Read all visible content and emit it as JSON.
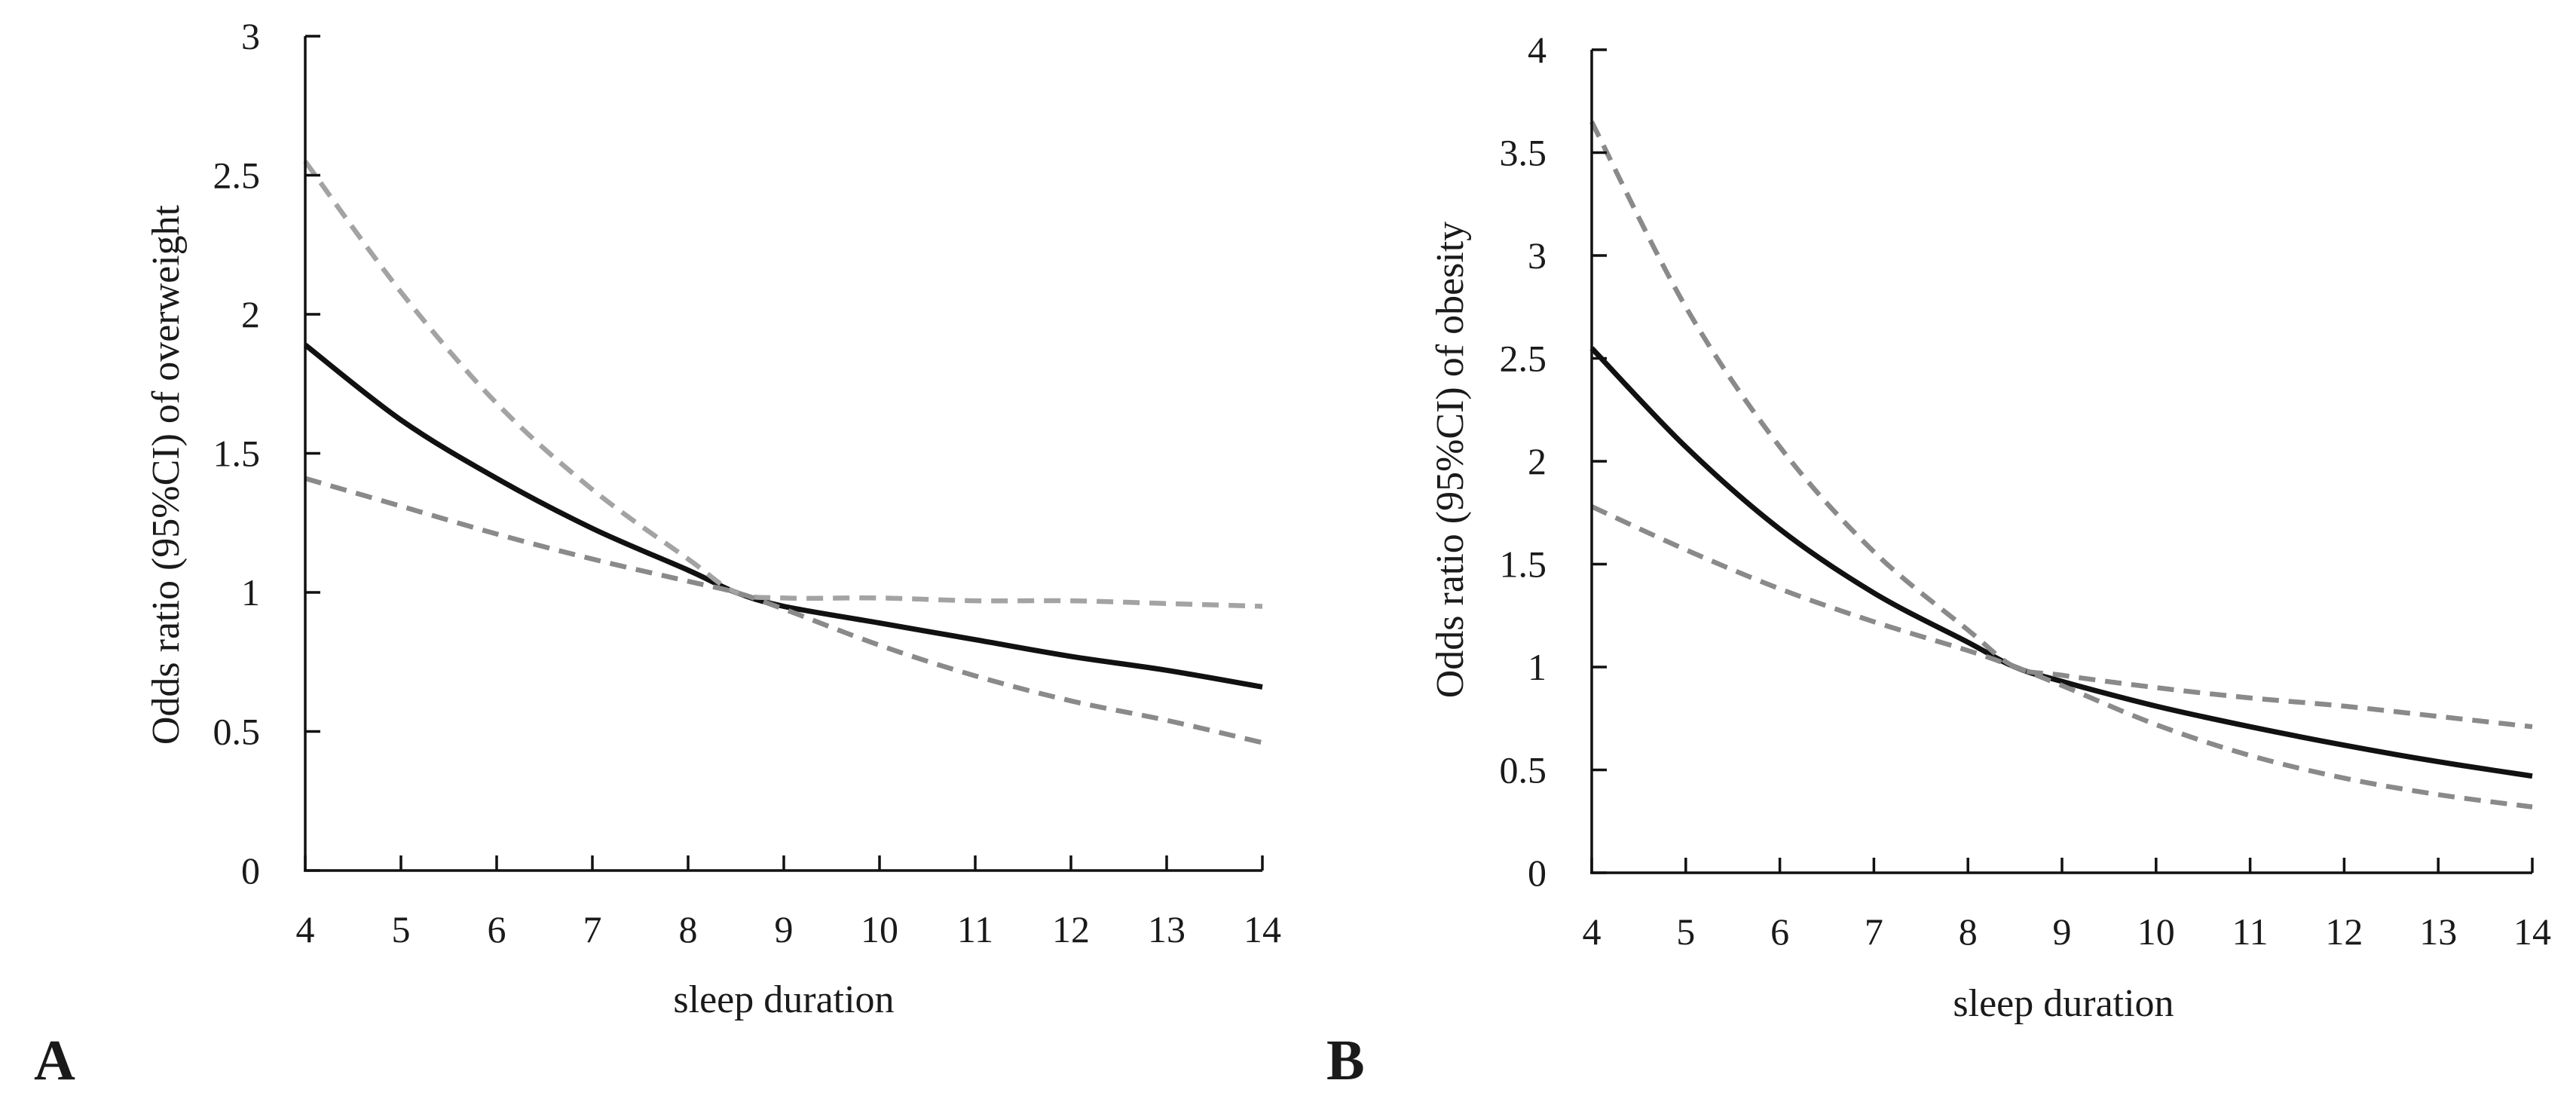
{
  "colors": {
    "axis": "#111111",
    "estimate": "#111111",
    "ci_upper_a": "#a3a3a3",
    "ci_lower_a": "#8a8a8a",
    "ci_b": "#8a8a8a"
  },
  "chart_data": [
    {
      "type": "line",
      "panel_label": "A",
      "xlabel": "sleep duration",
      "ylabel": "Odds ratio (95%CI) of overweight",
      "xlim": [
        4,
        14
      ],
      "ylim": [
        0,
        3
      ],
      "xticks": [
        "4",
        "5",
        "6",
        "7",
        "8",
        "9",
        "10",
        "11",
        "12",
        "13",
        "14"
      ],
      "yticks": [
        "0",
        "0.5",
        "1",
        "1.5",
        "2",
        "2.5",
        "3"
      ],
      "x": [
        4,
        5,
        6,
        7,
        8,
        8.5,
        9,
        10,
        11,
        12,
        13,
        14
      ],
      "series": [
        {
          "name": "Odds ratio",
          "style": "solid",
          "values": [
            1.89,
            1.62,
            1.41,
            1.23,
            1.08,
            1.0,
            0.95,
            0.89,
            0.83,
            0.77,
            0.72,
            0.66
          ]
        },
        {
          "name": "95% CI upper",
          "style": "dashed",
          "values": [
            2.55,
            2.08,
            1.68,
            1.37,
            1.12,
            1.0,
            0.98,
            0.98,
            0.97,
            0.97,
            0.96,
            0.95
          ]
        },
        {
          "name": "95% CI lower",
          "style": "dashed",
          "values": [
            1.41,
            1.31,
            1.21,
            1.12,
            1.04,
            1.0,
            0.94,
            0.81,
            0.7,
            0.61,
            0.54,
            0.46
          ]
        }
      ]
    },
    {
      "type": "line",
      "panel_label": "B",
      "xlabel": "sleep duration",
      "ylabel": "Odds ratio (95%CI) of obesity",
      "xlim": [
        4,
        14
      ],
      "ylim": [
        0,
        4
      ],
      "xticks": [
        "4",
        "5",
        "6",
        "7",
        "8",
        "9",
        "10",
        "11",
        "12",
        "13",
        "14"
      ],
      "yticks": [
        "0",
        "0.5",
        "1",
        "1.5",
        "2",
        "2.5",
        "3",
        "3.5",
        "4"
      ],
      "x": [
        4,
        5,
        6,
        7,
        8,
        8.5,
        9,
        10,
        11,
        12,
        13,
        14
      ],
      "series": [
        {
          "name": "Odds ratio",
          "style": "solid",
          "values": [
            2.55,
            2.07,
            1.67,
            1.36,
            1.12,
            1.0,
            0.93,
            0.81,
            0.71,
            0.62,
            0.54,
            0.47
          ]
        },
        {
          "name": "95% CI upper",
          "style": "dashed",
          "values": [
            3.65,
            2.75,
            2.07,
            1.56,
            1.18,
            1.0,
            0.96,
            0.9,
            0.85,
            0.81,
            0.76,
            0.71
          ]
        },
        {
          "name": "95% CI lower",
          "style": "dashed",
          "values": [
            1.78,
            1.57,
            1.38,
            1.22,
            1.08,
            1.0,
            0.91,
            0.72,
            0.57,
            0.46,
            0.38,
            0.32
          ]
        }
      ]
    }
  ]
}
